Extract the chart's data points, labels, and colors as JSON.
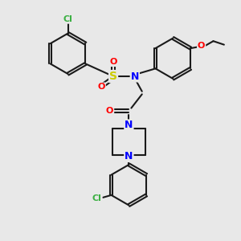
{
  "bg_color": "#e8e8e8",
  "bond_color": "#1a1a1a",
  "bond_width": 1.5,
  "atom_colors": {
    "Cl": "#3cb043",
    "S": "#cccc00",
    "O": "#ff0000",
    "N": "#0000ff",
    "C": "#1a1a1a"
  },
  "figsize": [
    3.0,
    3.0
  ],
  "dpi": 100
}
